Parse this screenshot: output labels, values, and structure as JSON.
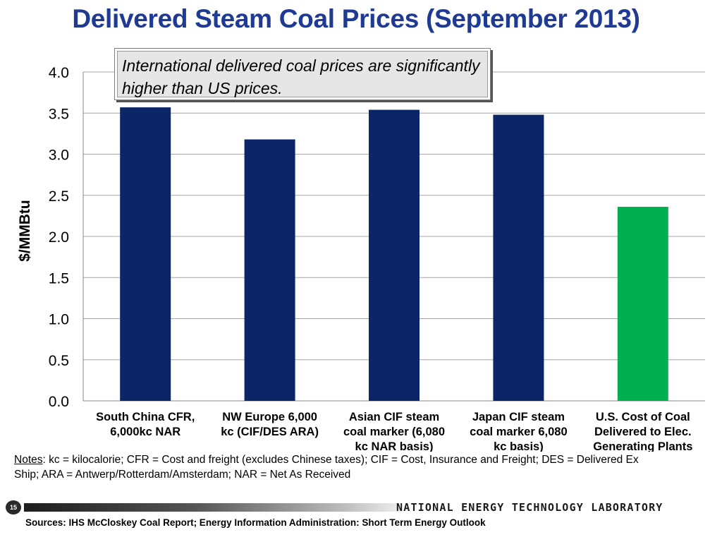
{
  "slide": {
    "title": "Delivered Steam Coal Prices (September 2013)",
    "callout": "International delivered coal prices are significantly higher than US  prices.",
    "notes_label": "Notes",
    "notes_line1": ": kc = kilocalorie; CFR = Cost and freight (excludes Chinese taxes); CIF = Cost, Insurance and Freight; DES = Delivered Ex",
    "notes_line2": "Ship;  ARA = Antwerp/Rotterdam/Amsterdam; NAR = Net As Received",
    "page_number": "15",
    "lab_name": "NATIONAL ENERGY TECHNOLOGY LABORATORY",
    "sources": "Sources: IHS McCloskey Coal Report; Energy Information Administration: Short Term Energy Outlook"
  },
  "chart_data": {
    "type": "bar",
    "title": "Delivered Steam Coal Prices (September 2013)",
    "ylabel": "$/MMBtu",
    "xlabel": "",
    "ylim": [
      0,
      4.0
    ],
    "ytick_labels": [
      "0.0",
      "0.5",
      "1.0",
      "1.5",
      "2.0",
      "2.5",
      "3.0",
      "3.5",
      "4.0"
    ],
    "grid": true,
    "categories": [
      [
        "South China CFR,",
        "6,000kc NAR"
      ],
      [
        "NW Europe 6,000",
        "kc (CIF/DES ARA)"
      ],
      [
        "Asian CIF steam",
        "coal marker (6,080",
        "kc NAR basis)"
      ],
      [
        "Japan CIF steam",
        "coal marker 6,080",
        "kc basis)"
      ],
      [
        "U.S. Cost of Coal",
        "Delivered to Elec.",
        "Generating Plants"
      ]
    ],
    "values": [
      3.57,
      3.18,
      3.54,
      3.48,
      2.36
    ],
    "colors": [
      "#0b2566",
      "#0b2566",
      "#0b2566",
      "#0b2566",
      "#00b050"
    ]
  }
}
